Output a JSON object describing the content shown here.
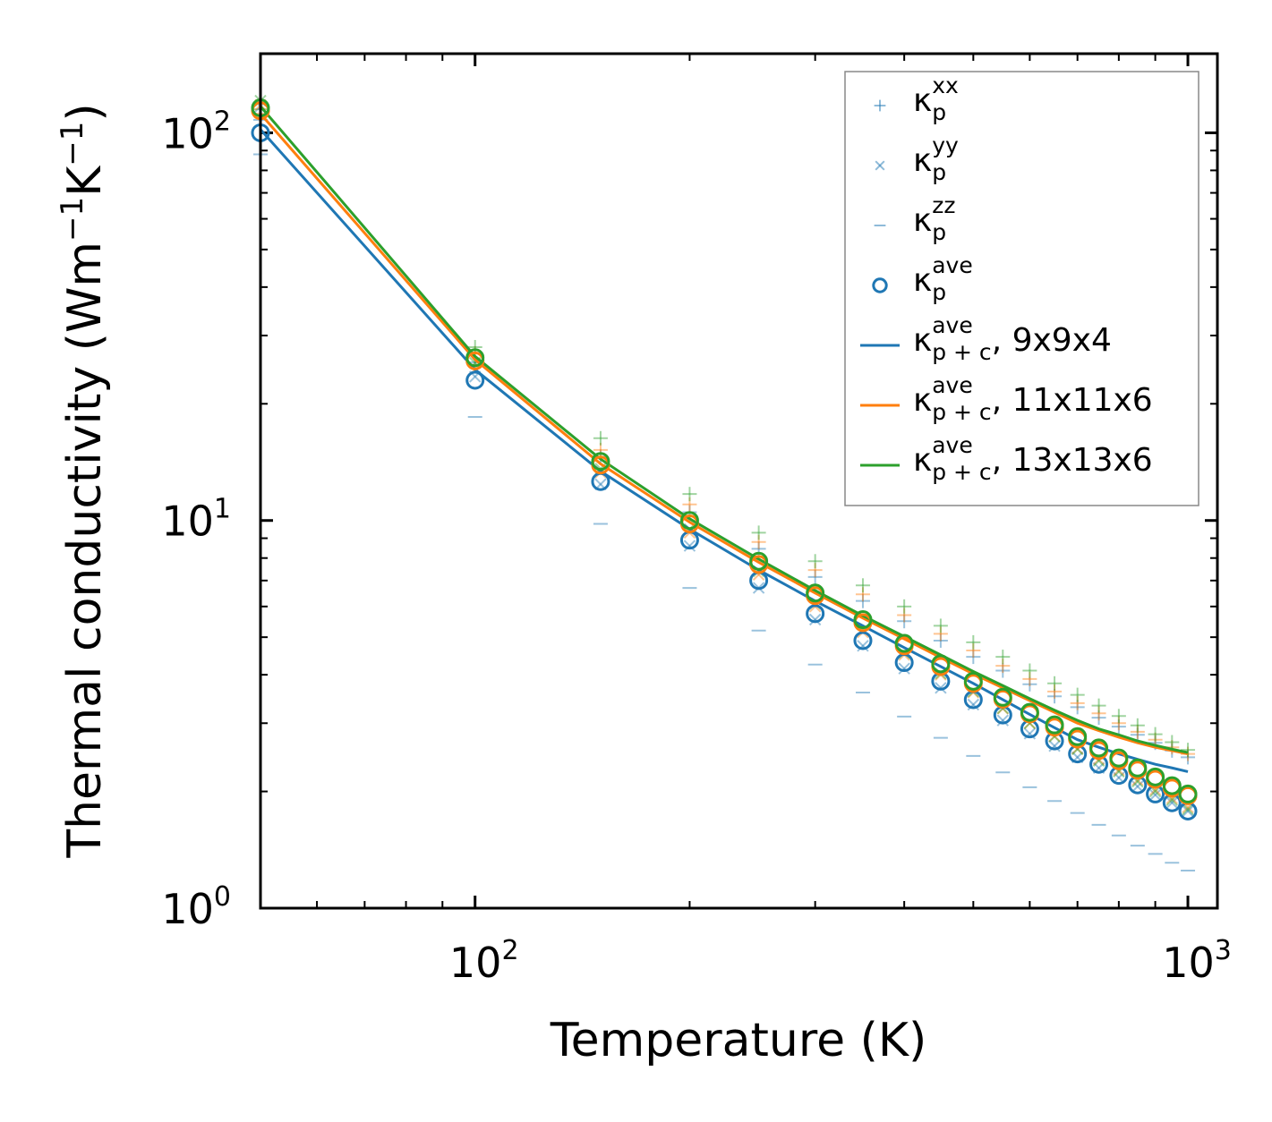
{
  "chart_data": {
    "type": "line+scatter",
    "scale": {
      "x": "log",
      "y": "log"
    },
    "xlabel": "Temperature (K)",
    "ylabel_main": "Thermal conductivity (Wm",
    "ylabel_parts": [
      "Thermal conductivity (Wm",
      "−1",
      "K",
      "−1",
      ")"
    ],
    "xlim": [
      50,
      1100
    ],
    "ylim": [
      1,
      160
    ],
    "xticks": [
      {
        "base": "10",
        "exp": "2",
        "value": 100
      },
      {
        "base": "10",
        "exp": "3",
        "value": 1000
      }
    ],
    "yticks": [
      {
        "base": "10",
        "exp": "0",
        "value": 1
      },
      {
        "base": "10",
        "exp": "1",
        "value": 10
      },
      {
        "base": "10",
        "exp": "2",
        "value": 100
      }
    ],
    "x": [
      50,
      100,
      150,
      200,
      250,
      300,
      350,
      400,
      450,
      500,
      550,
      600,
      650,
      700,
      750,
      800,
      850,
      900,
      950,
      1000
    ],
    "series": [
      {
        "name": "κp_xx",
        "style": "plus",
        "color": "#1f77b4",
        "opacity": 0.45,
        "values": [
          108,
          25.6,
          14.6,
          10.5,
          8.45,
          7.15,
          6.2,
          5.5,
          4.9,
          4.45,
          4.1,
          3.78,
          3.52,
          3.3,
          3.1,
          2.94,
          2.8,
          2.67,
          2.55,
          2.45
        ]
      },
      {
        "name": "κp_yy",
        "style": "cross",
        "color": "#1f77b4",
        "opacity": 0.45,
        "values": [
          117,
          23.5,
          12.4,
          8.6,
          6.7,
          5.55,
          4.75,
          4.15,
          3.7,
          3.35,
          3.05,
          2.82,
          2.62,
          2.45,
          2.3,
          2.17,
          2.06,
          1.96,
          1.87,
          1.78
        ]
      },
      {
        "name": "κp_zz",
        "style": "dash",
        "color": "#1f77b4",
        "opacity": 0.45,
        "values": [
          88,
          18.5,
          9.8,
          6.7,
          5.2,
          4.25,
          3.6,
          3.12,
          2.75,
          2.47,
          2.24,
          2.05,
          1.89,
          1.76,
          1.64,
          1.54,
          1.45,
          1.38,
          1.31,
          1.25
        ]
      },
      {
        "name": "κp_ave (9x9x4)",
        "style": "circle",
        "color": "#1f77b4",
        "values": [
          100,
          23,
          12.6,
          8.9,
          7.0,
          5.75,
          4.9,
          4.3,
          3.85,
          3.45,
          3.15,
          2.9,
          2.7,
          2.5,
          2.35,
          2.2,
          2.08,
          1.97,
          1.87,
          1.78
        ]
      },
      {
        "name": "κp_xx (11x11x6)",
        "style": "plus",
        "color": "#ff7f0e",
        "opacity": 0.45,
        "values": [
          112,
          27,
          15.2,
          11.0,
          8.8,
          7.45,
          6.45,
          5.7,
          5.1,
          4.62,
          4.22,
          3.9,
          3.62,
          3.38,
          3.18,
          3.0,
          2.85,
          2.72,
          2.6,
          2.5
        ]
      },
      {
        "name": "κp_yy (11x11x6)",
        "style": "cross",
        "color": "#ff7f0e",
        "opacity": 0.45,
        "values": [
          118,
          24.5,
          13.3,
          9.3,
          7.25,
          6.0,
          5.15,
          4.5,
          4.0,
          3.6,
          3.27,
          3.0,
          2.78,
          2.58,
          2.42,
          2.27,
          2.14,
          2.02,
          1.92,
          1.82
        ]
      },
      {
        "name": "κp_ave (11x11x6)",
        "style": "circle",
        "color": "#ff7f0e",
        "values": [
          114,
          25.8,
          13.9,
          9.8,
          7.7,
          6.4,
          5.45,
          4.75,
          4.2,
          3.8,
          3.46,
          3.17,
          2.93,
          2.73,
          2.55,
          2.4,
          2.27,
          2.15,
          2.04,
          1.95
        ]
      },
      {
        "name": "κp_xx (13x13x6)",
        "style": "plus",
        "color": "#2ca02c",
        "opacity": 0.45,
        "values": [
          115,
          28,
          16.3,
          11.7,
          9.3,
          7.85,
          6.8,
          6.0,
          5.35,
          4.85,
          4.45,
          4.1,
          3.8,
          3.55,
          3.33,
          3.13,
          2.96,
          2.81,
          2.68,
          2.56
        ]
      },
      {
        "name": "κp_yy (13x13x6)",
        "style": "cross",
        "color": "#2ca02c",
        "opacity": 0.45,
        "values": [
          121,
          25.5,
          13.6,
          9.5,
          7.4,
          6.1,
          5.22,
          4.55,
          4.03,
          3.62,
          3.28,
          3.0,
          2.77,
          2.57,
          2.4,
          2.25,
          2.12,
          2.0,
          1.9,
          1.8
        ]
      },
      {
        "name": "κp_ave (13x13x6)",
        "style": "circle",
        "color": "#2ca02c",
        "values": [
          116,
          26.3,
          14.2,
          10.0,
          7.85,
          6.5,
          5.55,
          4.82,
          4.27,
          3.85,
          3.5,
          3.2,
          2.97,
          2.77,
          2.59,
          2.44,
          2.3,
          2.18,
          2.07,
          1.97
        ]
      },
      {
        "name": "κp+c_ave, 9x9x4",
        "style": "line",
        "color": "#1f77b4",
        "values": [
          102,
          24.5,
          13.4,
          9.5,
          7.45,
          6.2,
          5.35,
          4.7,
          4.2,
          3.8,
          3.45,
          3.16,
          2.92,
          2.72,
          2.6,
          2.5,
          2.42,
          2.35,
          2.3,
          2.25
        ]
      },
      {
        "name": "κp+c_ave, 11x11x6",
        "style": "line",
        "color": "#ff7f0e",
        "values": [
          112,
          26.0,
          14.0,
          9.9,
          7.8,
          6.5,
          5.6,
          4.95,
          4.43,
          4.02,
          3.7,
          3.43,
          3.2,
          3.0,
          2.87,
          2.76,
          2.67,
          2.6,
          2.55,
          2.5
        ]
      },
      {
        "name": "κp+c_ave, 13x13x6",
        "style": "line",
        "color": "#2ca02c",
        "values": [
          117,
          26.5,
          14.4,
          10.1,
          7.95,
          6.6,
          5.68,
          5.02,
          4.5,
          4.08,
          3.75,
          3.47,
          3.24,
          3.05,
          2.9,
          2.8,
          2.7,
          2.63,
          2.57,
          2.52
        ]
      }
    ],
    "legend": {
      "placement": "top-right",
      "entries": [
        {
          "marker": "plus",
          "color": "#1f77b4",
          "sym": "κ",
          "sub": "p",
          "sup": "xx",
          "suffix": ""
        },
        {
          "marker": "cross",
          "color": "#1f77b4",
          "sym": "κ",
          "sub": "p",
          "sup": "yy",
          "suffix": ""
        },
        {
          "marker": "dash",
          "color": "#1f77b4",
          "sym": "κ",
          "sub": "p",
          "sup": "zz",
          "suffix": ""
        },
        {
          "marker": "circle",
          "color": "#1f77b4",
          "sym": "κ",
          "sub": "p",
          "sup": "ave",
          "suffix": ""
        },
        {
          "marker": "line",
          "color": "#1f77b4",
          "sym": "κ",
          "sub": "p + c",
          "sup": "ave",
          "suffix": ", 9x9x4"
        },
        {
          "marker": "line",
          "color": "#ff7f0e",
          "sym": "κ",
          "sub": "p + c",
          "sup": "ave",
          "suffix": ", 11x11x6"
        },
        {
          "marker": "line",
          "color": "#2ca02c",
          "sym": "κ",
          "sub": "p + c",
          "sup": "ave",
          "suffix": ", 13x13x6"
        }
      ]
    }
  }
}
